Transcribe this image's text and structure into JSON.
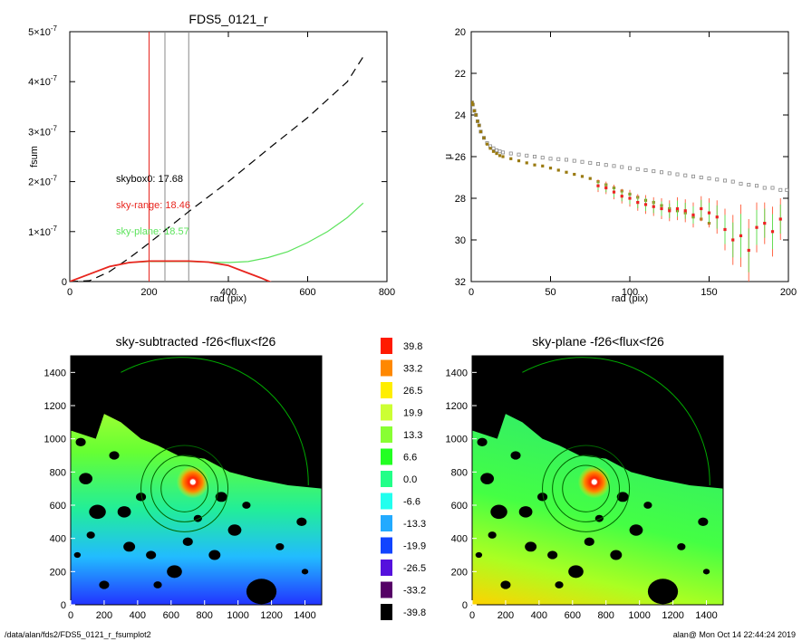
{
  "footer": {
    "path": "/data/alan/fds2/FDS5_0121_r_fsumplot2",
    "stamp": "alan@  Mon Oct 14 22:44:24 2019"
  },
  "colors": {
    "red": "#e8251e",
    "green": "#5ce35c",
    "black": "#000000",
    "grey": "#888888"
  },
  "chart_data": [
    {
      "type": "line",
      "title": "FDS5_0121_r",
      "xlabel": "rad (pix)",
      "ylabel": "fsum",
      "xlim": [
        0,
        800
      ],
      "ylim": [
        0,
        5e-07
      ],
      "xticks": [
        "0",
        "200",
        "400",
        "600",
        "800"
      ],
      "yticks": [
        {
          "base": "0",
          "exp": ""
        },
        {
          "base": "1×10",
          "exp": "-7"
        },
        {
          "base": "2×10",
          "exp": "-7"
        },
        {
          "base": "3×10",
          "exp": "-7"
        },
        {
          "base": "4×10",
          "exp": "-7"
        },
        {
          "base": "5×10",
          "exp": "-7"
        }
      ],
      "annotations": [
        "skybox0: 17.68",
        "sky-range: 18.46",
        "sky-plane: 18.57"
      ],
      "vlines": [
        {
          "x": 200,
          "color": "red"
        },
        {
          "x": 240,
          "color": "grey"
        },
        {
          "x": 300,
          "color": "grey"
        }
      ],
      "series": [
        {
          "color": "black",
          "style": "dashed",
          "x": [
            0,
            50,
            100,
            150,
            200,
            300,
            400,
            500,
            600,
            700,
            740
          ],
          "y": [
            0,
            1.8e-09,
            2e-08,
            4.7e-08,
            7.7e-08,
            1.4e-07,
            2e-07,
            2.65e-07,
            3.28e-07,
            4e-07,
            4.5e-07
          ]
        },
        {
          "color": "green",
          "style": "solid",
          "x": [
            0,
            50,
            100,
            150,
            200,
            250,
            300,
            350,
            400,
            450,
            500,
            550,
            600,
            650,
            700,
            740
          ],
          "y": [
            0,
            1.5e-08,
            3e-08,
            3.8e-08,
            4e-08,
            4e-08,
            4e-08,
            3.9e-08,
            3.8e-08,
            4e-08,
            4.8e-08,
            6e-08,
            7.8e-08,
            1e-07,
            1.28e-07,
            1.57e-07
          ]
        },
        {
          "color": "red",
          "style": "solid",
          "x": [
            0,
            50,
            100,
            150,
            200,
            250,
            300,
            350,
            400,
            440,
            480,
            510
          ],
          "y": [
            0,
            1.5e-08,
            3e-08,
            3.8e-08,
            4.1e-08,
            4.1e-08,
            4.1e-08,
            3.9e-08,
            3.2e-08,
            2e-08,
            8e-09,
            -2e-09
          ]
        }
      ]
    },
    {
      "type": "scatter",
      "xlabel": "rad (pix)",
      "ylabel": "μ",
      "xlim": [
        0,
        200
      ],
      "ylim": [
        32,
        20
      ],
      "xticks": [
        "0",
        "50",
        "100",
        "150",
        "200"
      ],
      "yticks": [
        "20",
        "22",
        "24",
        "26",
        "28",
        "30",
        "32"
      ],
      "series": [
        {
          "color": "grey",
          "marker": "open-square",
          "x": [
            0.5,
            1,
            2,
            3,
            4,
            5,
            6,
            8,
            10,
            12,
            14,
            16,
            18,
            20,
            25,
            30,
            35,
            40,
            45,
            50,
            55,
            60,
            65,
            70,
            75,
            80,
            85,
            90,
            95,
            100,
            105,
            110,
            115,
            120,
            125,
            130,
            135,
            140,
            145,
            150,
            155,
            160,
            165,
            170,
            175,
            180,
            185,
            190,
            195,
            199
          ],
          "y": [
            23.4,
            23.5,
            23.8,
            24.0,
            24.3,
            24.5,
            24.8,
            25.1,
            25.35,
            25.5,
            25.6,
            25.7,
            25.75,
            25.8,
            25.85,
            25.9,
            25.95,
            26.0,
            26.05,
            26.1,
            26.12,
            26.15,
            26.2,
            26.25,
            26.3,
            26.35,
            26.4,
            26.45,
            26.5,
            26.55,
            26.6,
            26.65,
            26.7,
            26.75,
            26.8,
            26.85,
            26.9,
            26.95,
            27.0,
            27.05,
            27.1,
            27.15,
            27.2,
            27.3,
            27.35,
            27.4,
            27.5,
            27.5,
            27.6,
            27.6
          ]
        },
        {
          "color": "olive",
          "marker": "filled-square",
          "x": [
            0.5,
            1,
            2,
            3,
            4,
            5,
            6,
            8,
            10,
            12,
            14,
            16,
            18,
            20,
            25,
            30,
            35,
            40,
            45,
            50,
            55,
            60,
            65,
            70,
            75,
            80,
            85,
            90,
            95,
            100,
            105,
            110,
            115,
            120,
            125,
            130,
            135,
            140,
            145,
            150
          ],
          "y": [
            23.4,
            23.5,
            23.8,
            24.0,
            24.3,
            24.5,
            24.8,
            25.1,
            25.4,
            25.6,
            25.75,
            25.85,
            25.95,
            26.0,
            26.1,
            26.2,
            26.3,
            26.4,
            26.45,
            26.55,
            26.65,
            26.75,
            26.85,
            26.95,
            27.05,
            27.2,
            27.35,
            27.5,
            27.65,
            27.8,
            27.95,
            28.1,
            28.2,
            28.35,
            28.5,
            28.6,
            28.7,
            28.9,
            29.0,
            29.2
          ]
        },
        {
          "color": "red",
          "marker": "filled-square-errorbar",
          "x": [
            80,
            85,
            90,
            95,
            100,
            105,
            110,
            115,
            120,
            125,
            130,
            135,
            140,
            145,
            150,
            155,
            160,
            165,
            170,
            175,
            180,
            185,
            190,
            195
          ],
          "y": [
            27.4,
            27.5,
            27.7,
            27.9,
            28.0,
            28.2,
            28.3,
            28.4,
            28.5,
            28.6,
            28.5,
            28.6,
            28.8,
            28.5,
            28.7,
            28.9,
            29.5,
            30.0,
            29.8,
            30.5,
            29.4,
            29.2,
            29.6,
            29.0
          ],
          "err": [
            0.3,
            0.3,
            0.35,
            0.35,
            0.4,
            0.4,
            0.45,
            0.45,
            0.5,
            0.5,
            0.55,
            0.55,
            0.6,
            0.6,
            0.7,
            0.8,
            1.0,
            1.2,
            1.5,
            1.5,
            1.2,
            1.0,
            1.2,
            1.0
          ]
        }
      ]
    },
    {
      "type": "heatmap",
      "title": "sky-subtracted -f26<flux<f26",
      "xlim": [
        0,
        1500
      ],
      "ylim": [
        0,
        1500
      ],
      "xticks": [
        "0",
        "200",
        "400",
        "600",
        "800",
        "1000",
        "1200",
        "1400"
      ],
      "yticks": [
        "0",
        "200",
        "400",
        "600",
        "800",
        "1000",
        "1200",
        "1400"
      ]
    },
    {
      "type": "heatmap",
      "title": "sky-plane -f26<flux<f26",
      "xlim": [
        0,
        1500
      ],
      "ylim": [
        0,
        1500
      ],
      "xticks": [
        "0",
        "200",
        "400",
        "600",
        "800",
        "1000",
        "1200",
        "1400"
      ],
      "yticks": [
        "0",
        "200",
        "400",
        "600",
        "800",
        "1000",
        "1200",
        "1400"
      ]
    }
  ],
  "colorbar": {
    "labels": [
      "39.8",
      "33.2",
      "26.5",
      "19.9",
      "13.3",
      "6.6",
      "0.0",
      "-6.6",
      "-13.3",
      "-19.9",
      "-26.5",
      "-33.2",
      "-39.8"
    ],
    "colors": [
      "#ff1a00",
      "#ff8800",
      "#ffee00",
      "#ccff33",
      "#88ff33",
      "#22ff22",
      "#22ff88",
      "#22ffee",
      "#22aaff",
      "#1144ff",
      "#5511dd",
      "#550066",
      "#000000"
    ]
  }
}
